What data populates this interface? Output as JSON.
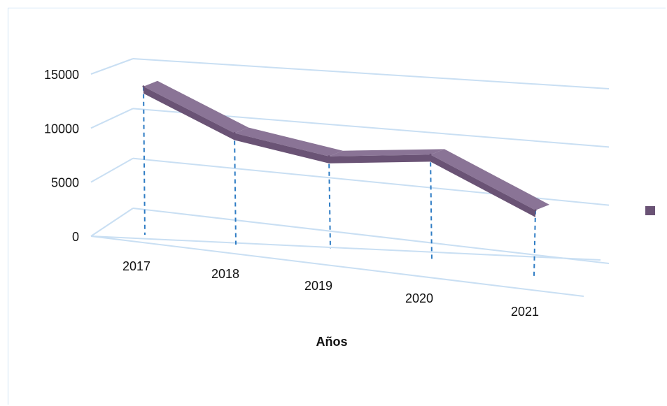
{
  "chart_data": {
    "type": "line",
    "style": "3d",
    "title": "",
    "xlabel": "Años",
    "ylabel": "",
    "categories": [
      "2017",
      "2018",
      "2019",
      "2020",
      "2021"
    ],
    "series": [
      {
        "values": [
          14200,
          10800,
          9500,
          11000,
          5200
        ]
      }
    ],
    "ylim": [
      0,
      15000
    ],
    "yticks": [
      "0",
      "5000",
      "10000",
      "15000"
    ],
    "grid": true,
    "legend": "right",
    "colors": {
      "series": "#6a5375",
      "series_top": "#8a7496",
      "grid": "#c9dff3",
      "drop_lines": "#2e7cc4"
    }
  }
}
